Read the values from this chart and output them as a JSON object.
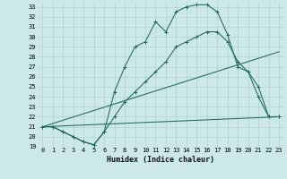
{
  "xlabel": "Humidex (Indice chaleur)",
  "bg_color": "#cce8e8",
  "grid_color": "#aacccc",
  "line_color": "#1a6b5a",
  "xlim": [
    -0.5,
    23.5
  ],
  "ylim": [
    19,
    33.5
  ],
  "xticks": [
    0,
    1,
    2,
    3,
    4,
    5,
    6,
    7,
    8,
    9,
    10,
    11,
    12,
    13,
    14,
    15,
    16,
    17,
    18,
    19,
    20,
    21,
    22,
    23
  ],
  "yticks": [
    19,
    20,
    21,
    22,
    23,
    24,
    25,
    26,
    27,
    28,
    29,
    30,
    31,
    32,
    33
  ],
  "series1_x": [
    0,
    1,
    2,
    3,
    4,
    5,
    6,
    7,
    8,
    9,
    10,
    11,
    12,
    13,
    14,
    15,
    16,
    17,
    18,
    19,
    20,
    21,
    22,
    23
  ],
  "series1_y": [
    21.0,
    21.0,
    20.5,
    20.0,
    19.5,
    19.2,
    20.5,
    24.5,
    27.0,
    29.0,
    29.5,
    31.5,
    30.5,
    32.5,
    33.0,
    33.2,
    33.2,
    32.5,
    30.2,
    27.0,
    26.5,
    25.0,
    22.0,
    22.0
  ],
  "series2_x": [
    0,
    1,
    2,
    3,
    4,
    5,
    6,
    7,
    8,
    9,
    10,
    11,
    12,
    13,
    14,
    15,
    16,
    17,
    18,
    19,
    20,
    21,
    22,
    23
  ],
  "series2_y": [
    21.0,
    21.0,
    20.5,
    20.0,
    19.5,
    19.2,
    20.5,
    22.0,
    23.5,
    24.5,
    25.5,
    26.5,
    27.5,
    29.0,
    29.5,
    30.0,
    30.5,
    30.5,
    29.5,
    27.5,
    26.5,
    24.0,
    22.0,
    22.0
  ],
  "series3_x": [
    0,
    23
  ],
  "series3_y": [
    21.0,
    28.5
  ],
  "series4_x": [
    0,
    23
  ],
  "series4_y": [
    21.0,
    22.0
  ],
  "tick_fontsize": 5.0,
  "xlabel_fontsize": 6.0,
  "linewidth": 0.75,
  "markersize": 2.2
}
